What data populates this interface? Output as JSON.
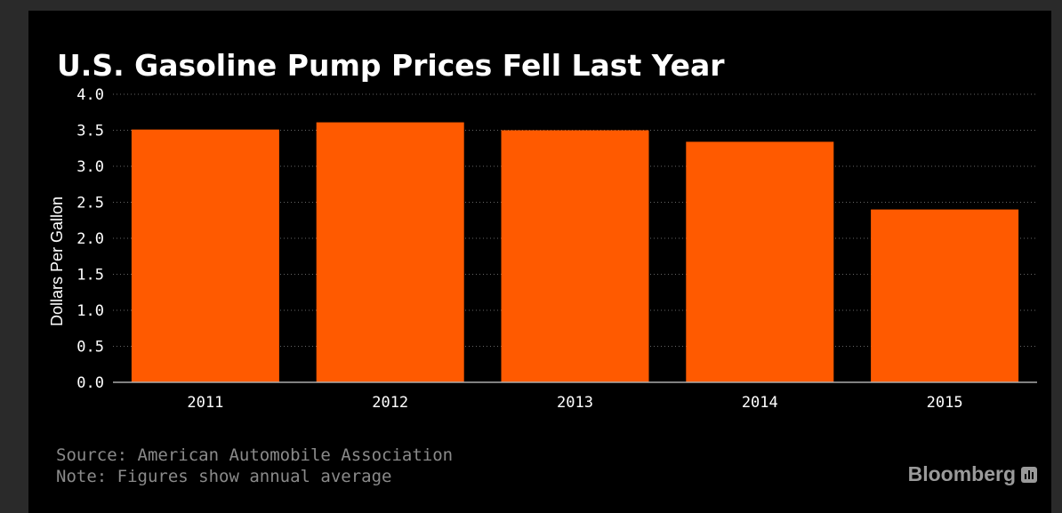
{
  "title": "U.S. Gasoline Pump Prices Fell Last Year",
  "footer": {
    "source": "Source: American Automobile Association",
    "note": "Note: Figures show annual average"
  },
  "brand": {
    "name": "Bloomberg",
    "icon": "bloomberg-chart-icon"
  },
  "colors": {
    "bar": "#ff5a00",
    "background": "#000000",
    "text": "#ffffff",
    "grid": "#666666"
  },
  "chart_data": {
    "type": "bar",
    "title": "U.S. Gasoline Pump Prices Fell Last Year",
    "xlabel": "",
    "ylabel": "Dollars Per Gallon",
    "categories": [
      "2011",
      "2012",
      "2013",
      "2014",
      "2015"
    ],
    "values": [
      3.51,
      3.61,
      3.5,
      3.34,
      2.4
    ],
    "ylim": [
      0,
      4.0
    ],
    "yticks": [
      "0.0",
      "0.5",
      "1.0",
      "1.5",
      "2.0",
      "2.5",
      "3.0",
      "3.5",
      "4.0"
    ],
    "grid": true,
    "legend": "none"
  }
}
